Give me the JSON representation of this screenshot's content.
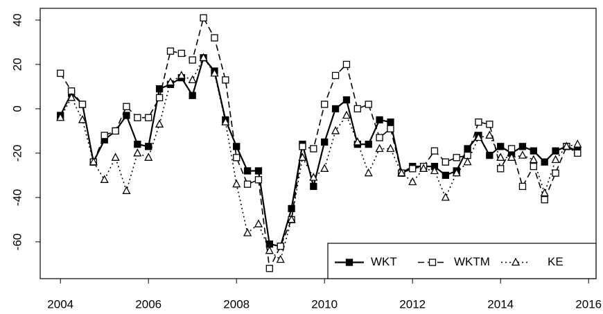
{
  "chart_data": {
    "type": "line",
    "x": [
      2004,
      2004.25,
      2004.5,
      2004.75,
      2005,
      2005.25,
      2005.5,
      2005.75,
      2006,
      2006.25,
      2006.5,
      2006.75,
      2007,
      2007.25,
      2007.5,
      2007.75,
      2008,
      2008.25,
      2008.5,
      2008.75,
      2009,
      2009.25,
      2009.5,
      2009.75,
      2010,
      2010.25,
      2010.5,
      2010.75,
      2011,
      2011.25,
      2011.5,
      2011.75,
      2012,
      2012.25,
      2012.5,
      2012.75,
      2013,
      2013.25,
      2013.5,
      2013.75,
      2014,
      2014.25,
      2014.5,
      2014.75,
      2015,
      2015.25,
      2015.5,
      2015.75
    ],
    "series": [
      {
        "name": "WKT",
        "color": "#000000",
        "line_style": "solid",
        "marker": "filled-square",
        "values": [
          -3,
          7,
          2,
          -24,
          -14,
          -10,
          -3,
          -16,
          -17,
          9,
          11,
          14,
          6,
          23,
          17,
          -5,
          -17,
          -28,
          -28,
          -61,
          -62,
          -45,
          -16,
          -35,
          -15,
          0,
          4,
          -16,
          -16,
          -5,
          -6,
          -29,
          -26,
          -26,
          -26,
          -30,
          -28,
          -18,
          -12,
          -21,
          -17,
          -20,
          -17,
          -19,
          -24,
          -19,
          -17,
          -19
        ]
      },
      {
        "name": "WKTM",
        "color": "#000000",
        "line_style": "dashed",
        "marker": "open-square",
        "values": [
          16,
          8,
          2,
          -24,
          -12,
          -10,
          1,
          -4,
          -4,
          5,
          26,
          25,
          22,
          41,
          32,
          13,
          -22,
          -34,
          -32,
          -72,
          -62,
          -50,
          -17,
          -18,
          2,
          15,
          20,
          0,
          2,
          -13,
          -9,
          -29,
          -27,
          -26,
          -19,
          -24,
          -22,
          -21,
          -6,
          -7,
          -27,
          -18,
          -35,
          -26,
          -41,
          -29,
          -17,
          -20
        ]
      },
      {
        "name": "KE",
        "color": "#000000",
        "line_style": "dotted",
        "marker": "open-triangle",
        "values": [
          -4,
          5,
          -5,
          -24,
          -32,
          -22,
          -37,
          -20,
          -22,
          -7,
          12,
          15,
          13,
          23,
          16,
          -6,
          -34,
          -56,
          -52,
          -64,
          -68,
          -50,
          -22,
          -31,
          -27,
          -10,
          -3,
          -15,
          -29,
          -18,
          -18,
          -29,
          -33,
          -27,
          -28,
          -40,
          -29,
          -24,
          -13,
          -12,
          -22,
          -22,
          -21,
          -23,
          -38,
          -23,
          -17,
          -16
        ]
      }
    ],
    "xlim": [
      2003.54,
      2016.17
    ],
    "xticks": [
      2004,
      2006,
      2008,
      2010,
      2012,
      2014,
      2016
    ],
    "ylim": [
      -76.6,
      45.3
    ],
    "yticks": [
      -60,
      -40,
      -20,
      0,
      20,
      40
    ],
    "legend": "bottom-right"
  }
}
